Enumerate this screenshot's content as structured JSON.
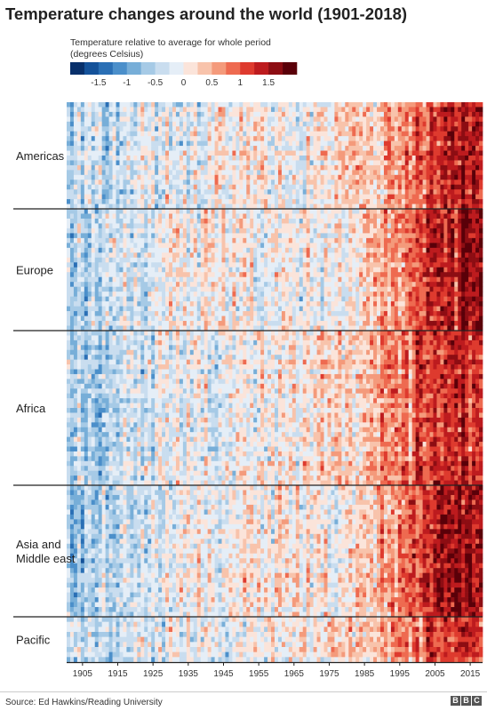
{
  "title": "Temperature changes around the world (1901-2018)",
  "legend": {
    "title_line1": "Temperature relative to average for whole period",
    "title_line2": "(degrees Celsius)",
    "colors": [
      "#08306b",
      "#14529a",
      "#2a6fb5",
      "#4b8fca",
      "#77aed8",
      "#a6cae6",
      "#c9ddef",
      "#e5eef7",
      "#fbe4da",
      "#f8c3ab",
      "#f49a7b",
      "#ee6a50",
      "#de3a2e",
      "#bd1b1e",
      "#8d0d13",
      "#5a0009"
    ],
    "min": -2.0,
    "max": 2.0,
    "ticks": [
      {
        "value": -1.5,
        "label": "-1.5"
      },
      {
        "value": -1,
        "label": "-1"
      },
      {
        "value": -0.5,
        "label": "-0.5"
      },
      {
        "value": 0,
        "label": "0"
      },
      {
        "value": 0.5,
        "label": "0.5"
      },
      {
        "value": 1,
        "label": "1"
      },
      {
        "value": 1.5,
        "label": "1.5"
      }
    ]
  },
  "chart_data": {
    "type": "heatmap",
    "title": "Temperature changes around the world (1901-2018)",
    "x_range": [
      1901,
      2018
    ],
    "color_range": [
      -2.0,
      2.0
    ],
    "x_ticks": [
      1905,
      1915,
      1925,
      1935,
      1945,
      1955,
      1965,
      1975,
      1985,
      1995,
      2005,
      2015
    ],
    "regions": [
      {
        "name": "Americas",
        "label_lines": [
          "Americas"
        ],
        "trend": [
          [
            1901,
            -0.6
          ],
          [
            1915,
            -0.5
          ],
          [
            1930,
            -0.2
          ],
          [
            1945,
            -0.1
          ],
          [
            1960,
            -0.1
          ],
          [
            1975,
            -0.1
          ],
          [
            1985,
            0.1
          ],
          [
            1995,
            0.5
          ],
          [
            2005,
            1.0
          ],
          [
            2018,
            1.3
          ]
        ]
      },
      {
        "name": "Europe",
        "label_lines": [
          "Europe"
        ],
        "trend": [
          [
            1901,
            -0.7
          ],
          [
            1915,
            -0.5
          ],
          [
            1930,
            -0.2
          ],
          [
            1945,
            -0.1
          ],
          [
            1960,
            -0.1
          ],
          [
            1975,
            -0.2
          ],
          [
            1985,
            0.0
          ],
          [
            1995,
            0.6
          ],
          [
            2005,
            1.1
          ],
          [
            2018,
            1.5
          ]
        ]
      },
      {
        "name": "Africa",
        "label_lines": [
          "Africa"
        ],
        "trend": [
          [
            1901,
            -0.8
          ],
          [
            1915,
            -0.6
          ],
          [
            1930,
            -0.3
          ],
          [
            1945,
            -0.2
          ],
          [
            1960,
            -0.1
          ],
          [
            1975,
            0.0
          ],
          [
            1985,
            0.2
          ],
          [
            1995,
            0.6
          ],
          [
            2005,
            1.0
          ],
          [
            2018,
            1.3
          ]
        ]
      },
      {
        "name": "Asia and Middle east",
        "label_lines": [
          "Asia and",
          "Middle east"
        ],
        "trend": [
          [
            1901,
            -0.7
          ],
          [
            1915,
            -0.6
          ],
          [
            1930,
            -0.3
          ],
          [
            1945,
            -0.2
          ],
          [
            1960,
            -0.1
          ],
          [
            1975,
            -0.1
          ],
          [
            1985,
            0.1
          ],
          [
            1995,
            0.6
          ],
          [
            2005,
            1.2
          ],
          [
            2018,
            1.5
          ]
        ]
      },
      {
        "name": "Pacific",
        "label_lines": [
          "Pacific"
        ],
        "trend": [
          [
            1901,
            -0.6
          ],
          [
            1915,
            -0.5
          ],
          [
            1930,
            -0.3
          ],
          [
            1945,
            -0.2
          ],
          [
            1960,
            -0.1
          ],
          [
            1975,
            0.0
          ],
          [
            1985,
            0.2
          ],
          [
            1995,
            0.5
          ],
          [
            2005,
            0.9
          ],
          [
            2018,
            1.2
          ]
        ]
      }
    ]
  },
  "source": "Source: Ed Hawkins/Reading University",
  "logo": [
    "B",
    "B",
    "C"
  ]
}
